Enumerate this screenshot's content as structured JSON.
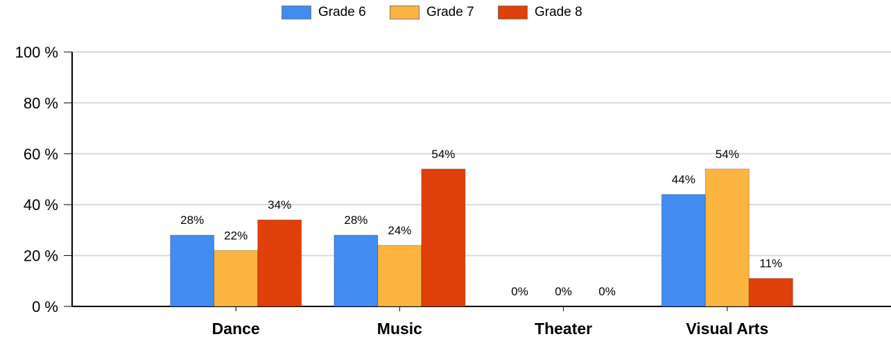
{
  "chart_data": {
    "type": "bar",
    "categories": [
      "Dance",
      "Music",
      "Theater",
      "Visual Arts"
    ],
    "series": [
      {
        "name": "Grade 6",
        "values": [
          28,
          28,
          0,
          44
        ],
        "labels": [
          "28%",
          "28%",
          "0%",
          "44%"
        ],
        "color": "#418cf0"
      },
      {
        "name": "Grade 7",
        "values": [
          22,
          24,
          0,
          54
        ],
        "labels": [
          "22%",
          "24%",
          "0%",
          "54%"
        ],
        "color": "#fcb441"
      },
      {
        "name": "Grade 8",
        "values": [
          34,
          54,
          0,
          11
        ],
        "labels": [
          "34%",
          "54%",
          "0%",
          "11%"
        ],
        "color": "#e0400a"
      }
    ],
    "ylim": [
      0,
      100
    ],
    "yticks": [
      0,
      20,
      40,
      60,
      80,
      100
    ],
    "ytick_labels": [
      "0 %",
      "20 %",
      "40 %",
      "60 %",
      "80 %",
      "100 %"
    ],
    "grid": true,
    "legend_position": "top-center",
    "title": "",
    "xlabel": "",
    "ylabel": ""
  }
}
